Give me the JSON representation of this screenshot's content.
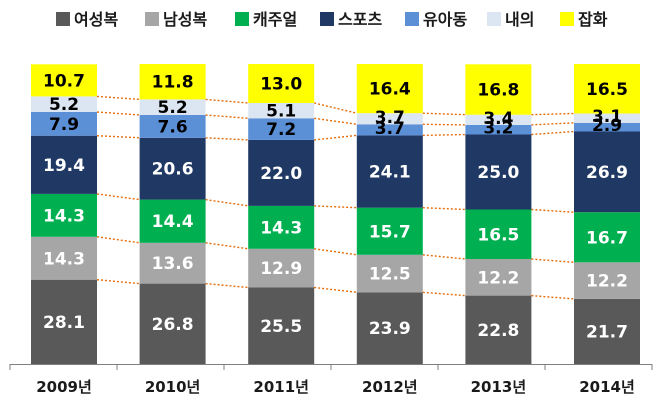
{
  "chart_data": {
    "type": "bar",
    "stacked": true,
    "orientation": "vertical",
    "unit": "%",
    "categories": [
      "2009년",
      "2010년",
      "2011년",
      "2012년",
      "2013년",
      "2014년"
    ],
    "series": [
      {
        "name": "여성복",
        "color": "#595959",
        "label_color": "#ffffff",
        "values": [
          28.1,
          26.8,
          25.5,
          23.9,
          22.8,
          21.7
        ]
      },
      {
        "name": "남성복",
        "color": "#a6a6a6",
        "label_color": "#ffffff",
        "values": [
          14.3,
          13.6,
          12.9,
          12.5,
          12.2,
          12.2
        ]
      },
      {
        "name": "캐주얼",
        "color": "#00b050",
        "label_color": "#ffffff",
        "values": [
          14.3,
          14.4,
          14.3,
          15.7,
          16.5,
          16.7
        ]
      },
      {
        "name": "스포츠",
        "color": "#1f3864",
        "label_color": "#ffffff",
        "values": [
          19.4,
          20.6,
          22.0,
          24.1,
          25.0,
          26.9
        ]
      },
      {
        "name": "유아동",
        "color": "#5b8fd6",
        "label_color": "#000000",
        "values": [
          7.9,
          7.6,
          7.2,
          3.7,
          3.2,
          2.9
        ]
      },
      {
        "name": "내의",
        "color": "#dce6f2",
        "label_color": "#000000",
        "values": [
          5.2,
          5.2,
          5.1,
          3.7,
          3.4,
          3.1
        ]
      },
      {
        "name": "잡화",
        "color": "#ffff00",
        "label_color": "#000000",
        "values": [
          10.7,
          11.8,
          13.0,
          16.4,
          16.8,
          16.5
        ]
      }
    ],
    "connector_lines": true,
    "connector_color": "#e46c0a",
    "legend_position": "top",
    "grid": false
  }
}
